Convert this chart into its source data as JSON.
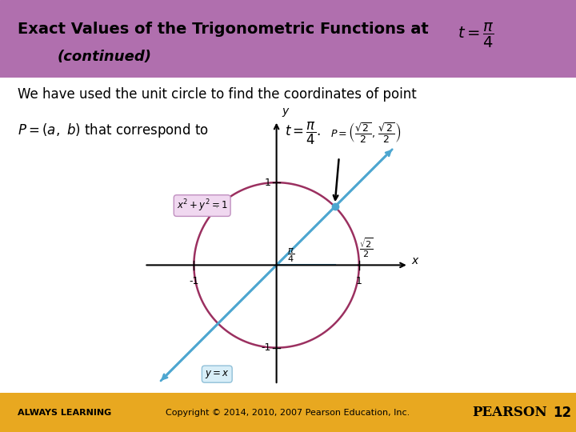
{
  "title_line1": "Exact Values of the Trigonometric Functions at ",
  "title_line2": "(continued)",
  "header_bg": "#b06fae",
  "header_text_color": "#000000",
  "footer_bg": "#e8a820",
  "footer_text_color": "#000000",
  "body_bg": "#ffffff",
  "page_number": "12",
  "footer_left": "ALWAYS LEARNING",
  "footer_center": "Copyright © 2014, 2010, 2007 Pearson Education, Inc.",
  "footer_right": "PEARSON",
  "circle_color": "#9b3060",
  "line_color": "#4da6d0",
  "point_color": "#4da6d0",
  "label_circle_bg": "#f0d8f0",
  "label_circle_edge": "#c090c0",
  "label_line_bg": "#d8eef8",
  "label_line_edge": "#90c0d8"
}
